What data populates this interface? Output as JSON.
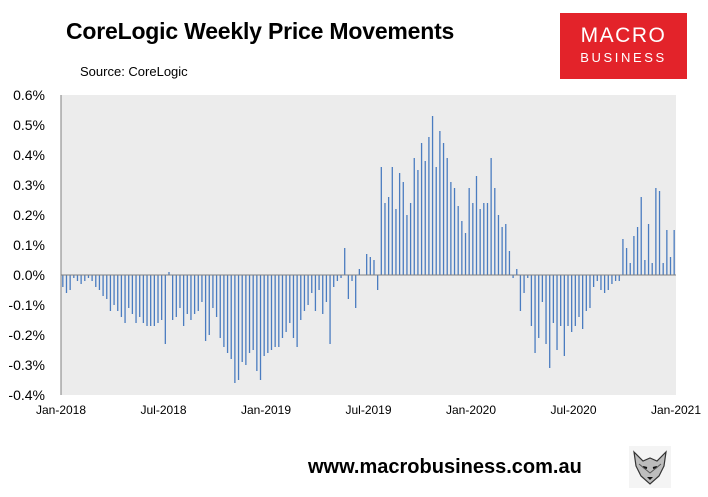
{
  "title": "CoreLogic Weekly Price Movements",
  "source": "Source: CoreLogic",
  "logo": {
    "line1": "MACRO",
    "line2": "BUSINESS"
  },
  "footer": {
    "url": "www.macrobusiness.com.au",
    "emblem": "fox-head-icon"
  },
  "colors": {
    "bars": "#4a7cc0",
    "plot_bg": "#ececec",
    "logo_bg": "#e3232a"
  },
  "chart_data": {
    "type": "bar",
    "title": "CoreLogic Weekly Price Movements",
    "ylim": [
      -0.4,
      0.6
    ],
    "y_ticks": [
      "-0.4%",
      "-0.3%",
      "-0.2%",
      "-0.1%",
      "0.0%",
      "0.1%",
      "0.2%",
      "0.3%",
      "0.4%",
      "0.5%",
      "0.6%"
    ],
    "x_ticks": [
      "Jan-2018",
      "Jul-2018",
      "Jan-2019",
      "Jul-2019",
      "Jan-2020",
      "Jul-2020",
      "Jan-2021"
    ],
    "grid": false,
    "legend": "none",
    "series": [
      {
        "values": [
          -0.04,
          -0.06,
          -0.05,
          -0.01,
          -0.02,
          -0.03,
          -0.02,
          -0.01,
          -0.02,
          -0.04,
          -0.05,
          -0.07,
          -0.08,
          -0.12,
          -0.1,
          -0.12,
          -0.14,
          -0.16,
          -0.11,
          -0.13,
          -0.16,
          -0.14,
          -0.16,
          -0.17,
          -0.17,
          -0.17,
          -0.16,
          -0.15,
          -0.23,
          0.01,
          -0.15,
          -0.14,
          -0.11,
          -0.17,
          -0.13,
          -0.15,
          -0.13,
          -0.12,
          -0.09,
          -0.22,
          -0.2,
          -0.11,
          -0.14,
          -0.21,
          -0.24,
          -0.26,
          -0.28,
          -0.36,
          -0.35,
          -0.29,
          -0.3,
          -0.26,
          -0.25,
          -0.32,
          -0.35,
          -0.27,
          -0.26,
          -0.25,
          -0.24,
          -0.24,
          -0.21,
          -0.19,
          -0.16,
          -0.21,
          -0.24,
          -0.15,
          -0.12,
          -0.1,
          -0.06,
          -0.12,
          -0.05,
          -0.13,
          -0.09,
          -0.23,
          -0.04,
          -0.02,
          -0.01,
          0.09,
          -0.08,
          -0.02,
          -0.11,
          0.02,
          0.0,
          0.07,
          0.06,
          0.05,
          -0.05,
          0.36,
          0.24,
          0.26,
          0.36,
          0.22,
          0.34,
          0.31,
          0.2,
          0.24,
          0.39,
          0.35,
          0.44,
          0.38,
          0.46,
          0.53,
          0.36,
          0.48,
          0.44,
          0.39,
          0.31,
          0.29,
          0.23,
          0.18,
          0.14,
          0.29,
          0.24,
          0.33,
          0.22,
          0.24,
          0.24,
          0.39,
          0.29,
          0.2,
          0.16,
          0.17,
          0.08,
          -0.01,
          0.02,
          -0.12,
          -0.06,
          -0.01,
          -0.17,
          -0.26,
          -0.21,
          -0.09,
          -0.23,
          -0.31,
          -0.16,
          -0.25,
          -0.17,
          -0.27,
          -0.17,
          -0.19,
          -0.17,
          -0.14,
          -0.18,
          -0.12,
          -0.11,
          -0.04,
          -0.02,
          -0.05,
          -0.06,
          -0.05,
          -0.03,
          -0.02,
          -0.02,
          0.12,
          0.09,
          0.04,
          0.13,
          0.16,
          0.26,
          0.05,
          0.17,
          0.04,
          0.29,
          0.28,
          0.04,
          0.15,
          0.06,
          0.15
        ]
      }
    ]
  }
}
